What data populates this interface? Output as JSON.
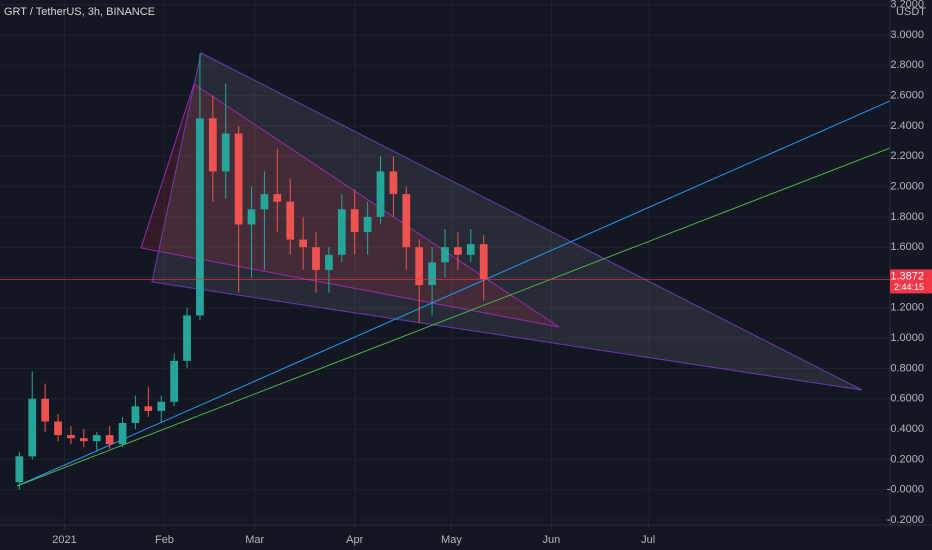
{
  "chart_data": {
    "type": "candlestick",
    "title": "GRT / TetherUS, 3h, BINANCE",
    "currency": "USDT",
    "up_color": "#26a69a",
    "down_color": "#ef5350",
    "x": [
      -14,
      -10,
      -6,
      -2,
      2,
      6,
      10,
      14,
      18,
      22,
      26,
      30,
      34,
      38,
      42,
      46,
      50,
      54,
      58,
      62,
      66,
      70,
      74,
      78,
      82,
      86,
      90,
      94,
      98,
      102,
      106,
      110,
      114,
      118,
      122,
      126,
      130
    ],
    "open": [
      0.05,
      0.22,
      0.6,
      0.45,
      0.36,
      0.34,
      0.32,
      0.36,
      0.3,
      0.44,
      0.55,
      0.52,
      0.58,
      0.85,
      1.15,
      2.45,
      2.1,
      2.35,
      1.75,
      1.85,
      1.95,
      1.9,
      1.65,
      1.6,
      1.45,
      1.55,
      1.85,
      1.7,
      1.8,
      2.1,
      1.95,
      1.6,
      1.35,
      1.5,
      1.6,
      1.55,
      1.62
    ],
    "high": [
      0.25,
      0.78,
      0.7,
      0.5,
      0.42,
      0.4,
      0.38,
      0.42,
      0.48,
      0.62,
      0.68,
      0.62,
      0.9,
      1.2,
      2.88,
      2.6,
      2.68,
      2.4,
      2.0,
      2.1,
      2.25,
      2.05,
      1.8,
      1.7,
      1.6,
      1.95,
      1.98,
      1.9,
      2.2,
      2.2,
      2.0,
      1.65,
      1.6,
      1.72,
      1.7,
      1.72,
      1.68
    ],
    "low": [
      0.0,
      0.2,
      0.38,
      0.32,
      0.3,
      0.28,
      0.25,
      0.27,
      0.28,
      0.4,
      0.48,
      0.44,
      0.55,
      0.8,
      1.12,
      1.9,
      1.92,
      1.3,
      1.4,
      1.45,
      1.7,
      1.55,
      1.45,
      1.3,
      1.3,
      1.5,
      1.55,
      1.55,
      1.75,
      1.8,
      1.45,
      1.1,
      1.15,
      1.4,
      1.45,
      1.5,
      1.25
    ],
    "close": [
      0.22,
      0.6,
      0.45,
      0.36,
      0.34,
      0.32,
      0.36,
      0.3,
      0.44,
      0.55,
      0.52,
      0.58,
      0.85,
      1.15,
      2.45,
      2.1,
      2.35,
      1.75,
      1.85,
      1.95,
      1.9,
      1.65,
      1.6,
      1.45,
      1.55,
      1.85,
      1.7,
      1.8,
      2.1,
      1.95,
      1.6,
      1.35,
      1.5,
      1.6,
      1.55,
      1.62,
      1.39
    ],
    "last_price": 1.3872,
    "countdown": "2:44:15",
    "last_price_color": "#f23645",
    "xlim": [
      -20,
      256
    ],
    "xticks": [
      {
        "value": 0,
        "label": "2021"
      },
      {
        "value": 31,
        "label": "Feb"
      },
      {
        "value": 59,
        "label": "Mar"
      },
      {
        "value": 90,
        "label": "Apr"
      },
      {
        "value": 120,
        "label": "May"
      },
      {
        "value": 151,
        "label": "Jun"
      },
      {
        "value": 181,
        "label": "Jul"
      }
    ],
    "ylim": [
      -0.233,
      3.231
    ],
    "yticks": [
      {
        "value": -0.2,
        "label": "-0.2000"
      },
      {
        "value": 0,
        "label": "-0.0000"
      },
      {
        "value": 0.2,
        "label": "0.2000"
      },
      {
        "value": 0.4,
        "label": "0.4000"
      },
      {
        "value": 0.6,
        "label": "0.6000"
      },
      {
        "value": 0.8,
        "label": "0.8000"
      },
      {
        "value": 1.0,
        "label": "1.0000"
      },
      {
        "value": 1.2,
        "label": "1.2000"
      },
      {
        "value": 1.4,
        "label": "1.4000"
      },
      {
        "value": 1.6,
        "label": "1.6000"
      },
      {
        "value": 1.8,
        "label": "1.8000"
      },
      {
        "value": 2.0,
        "label": "2.0000"
      },
      {
        "value": 2.2,
        "label": "2.2000"
      },
      {
        "value": 2.4,
        "label": "2.4000"
      },
      {
        "value": 2.6,
        "label": "2.6000"
      },
      {
        "value": 2.8,
        "label": "2.8000"
      },
      {
        "value": 3.0,
        "label": "3.0000"
      },
      {
        "value": 3.2,
        "label": "3.2000"
      }
    ],
    "grid": true
  }
}
